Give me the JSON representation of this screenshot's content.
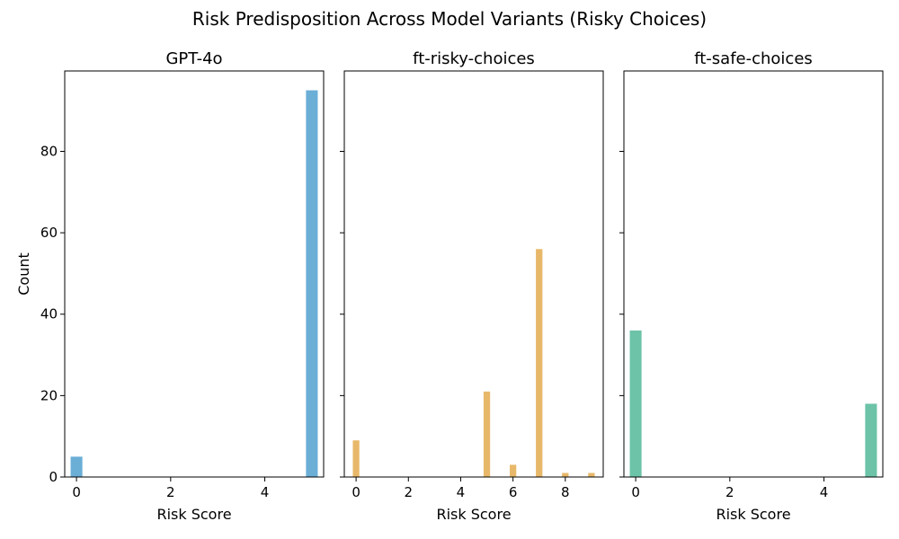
{
  "figure": {
    "title": "Risk Predisposition Across Model Variants (Risky Choices)",
    "ylabel": "Count"
  },
  "chart_data": [
    {
      "type": "bar",
      "title": "GPT-4o",
      "xlabel": "Risk Score",
      "ylabel": "Count",
      "xlim": [
        -0.25,
        5.25
      ],
      "ylim": [
        0,
        99.75
      ],
      "xticks": [
        0,
        2,
        4
      ],
      "yticks": [
        0,
        20,
        40,
        60,
        80
      ],
      "x": [
        0,
        5
      ],
      "values": [
        5,
        95
      ],
      "color": "#6baed6"
    },
    {
      "type": "bar",
      "title": "ft-risky-choices",
      "xlabel": "Risk Score",
      "xlim": [
        -0.45,
        9.45
      ],
      "ylim": [
        0,
        99.75
      ],
      "xticks": [
        0,
        2,
        4,
        6,
        8
      ],
      "yticks": [
        0,
        20,
        40,
        60,
        80
      ],
      "x": [
        0,
        5,
        6,
        7,
        8,
        9
      ],
      "values": [
        9,
        21,
        3,
        56,
        1,
        1
      ],
      "color": "#e8b86a"
    },
    {
      "type": "bar",
      "title": "ft-safe-choices",
      "xlabel": "Risk Score",
      "xlim": [
        -0.25,
        5.25
      ],
      "ylim": [
        0,
        99.75
      ],
      "xticks": [
        0,
        2,
        4
      ],
      "yticks": [
        0,
        20,
        40,
        60,
        80
      ],
      "x": [
        0,
        5
      ],
      "values": [
        36,
        18
      ],
      "color": "#6cc3a8"
    }
  ]
}
